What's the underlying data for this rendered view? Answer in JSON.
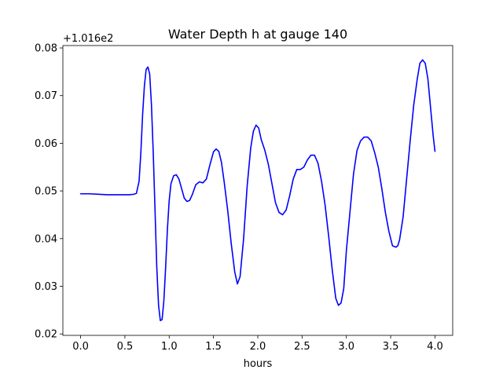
{
  "chart_data": {
    "type": "line",
    "title": "Water Depth h at gauge 140",
    "xlabel": "hours",
    "ylabel": "",
    "offset_text": "+1.016e2",
    "xlim": [
      -0.2,
      4.2
    ],
    "ylim": [
      0.0197,
      0.0805
    ],
    "xticks": [
      0.0,
      0.5,
      1.0,
      1.5,
      2.0,
      2.5,
      3.0,
      3.5,
      4.0
    ],
    "xtick_labels": [
      "0.0",
      "0.5",
      "1.0",
      "1.5",
      "2.0",
      "2.5",
      "3.0",
      "3.5",
      "4.0"
    ],
    "yticks": [
      0.02,
      0.03,
      0.04,
      0.05,
      0.06,
      0.07,
      0.08
    ],
    "ytick_labels": [
      "0.02",
      "0.03",
      "0.04",
      "0.05",
      "0.06",
      "0.07",
      "0.08"
    ],
    "grid": false,
    "line_color": "#0000ff",
    "series": [
      {
        "x": [
          0.0,
          0.1,
          0.2,
          0.3,
          0.4,
          0.5,
          0.55,
          0.6,
          0.63,
          0.66,
          0.68,
          0.7,
          0.72,
          0.74,
          0.76,
          0.78,
          0.8,
          0.82,
          0.84,
          0.86,
          0.88,
          0.9,
          0.92,
          0.94,
          0.96,
          0.98,
          1.0,
          1.02,
          1.05,
          1.08,
          1.11,
          1.14,
          1.17,
          1.2,
          1.23,
          1.26,
          1.3,
          1.34,
          1.38,
          1.42,
          1.46,
          1.5,
          1.53,
          1.56,
          1.59,
          1.62,
          1.66,
          1.7,
          1.74,
          1.77,
          1.8,
          1.84,
          1.88,
          1.92,
          1.95,
          1.98,
          2.01,
          2.04,
          2.08,
          2.12,
          2.16,
          2.2,
          2.24,
          2.28,
          2.32,
          2.36,
          2.4,
          2.44,
          2.48,
          2.52,
          2.56,
          2.6,
          2.64,
          2.68,
          2.72,
          2.76,
          2.8,
          2.84,
          2.88,
          2.91,
          2.94,
          2.97,
          3.0,
          3.04,
          3.08,
          3.12,
          3.16,
          3.2,
          3.24,
          3.28,
          3.32,
          3.36,
          3.4,
          3.44,
          3.48,
          3.52,
          3.56,
          3.58,
          3.6,
          3.64,
          3.68,
          3.72,
          3.76,
          3.8,
          3.83,
          3.86,
          3.89,
          3.92,
          3.95,
          3.98,
          4.0
        ],
        "y": [
          0.0494,
          0.0494,
          0.0493,
          0.0492,
          0.0492,
          0.0492,
          0.0492,
          0.0493,
          0.0495,
          0.052,
          0.058,
          0.066,
          0.072,
          0.0755,
          0.076,
          0.0745,
          0.068,
          0.058,
          0.046,
          0.034,
          0.026,
          0.0228,
          0.023,
          0.027,
          0.034,
          0.042,
          0.048,
          0.0515,
          0.0532,
          0.0534,
          0.0525,
          0.0505,
          0.0485,
          0.0478,
          0.048,
          0.0492,
          0.0513,
          0.0519,
          0.0517,
          0.0525,
          0.0555,
          0.0582,
          0.0588,
          0.0583,
          0.056,
          0.052,
          0.046,
          0.039,
          0.033,
          0.0305,
          0.032,
          0.04,
          0.051,
          0.059,
          0.0625,
          0.0638,
          0.0632,
          0.0607,
          0.0585,
          0.0555,
          0.0515,
          0.0475,
          0.0455,
          0.045,
          0.046,
          0.049,
          0.0525,
          0.0545,
          0.0545,
          0.055,
          0.0565,
          0.0575,
          0.0575,
          0.0558,
          0.052,
          0.047,
          0.0405,
          0.0335,
          0.0275,
          0.026,
          0.0265,
          0.0295,
          0.0375,
          0.0455,
          0.0535,
          0.0585,
          0.0605,
          0.0613,
          0.0613,
          0.0605,
          0.058,
          0.055,
          0.0505,
          0.0455,
          0.0415,
          0.0385,
          0.0382,
          0.0385,
          0.0397,
          0.0445,
          0.0525,
          0.0605,
          0.068,
          0.0735,
          0.0768,
          0.0775,
          0.0768,
          0.0735,
          0.0675,
          0.0615,
          0.0583
        ]
      }
    ]
  }
}
